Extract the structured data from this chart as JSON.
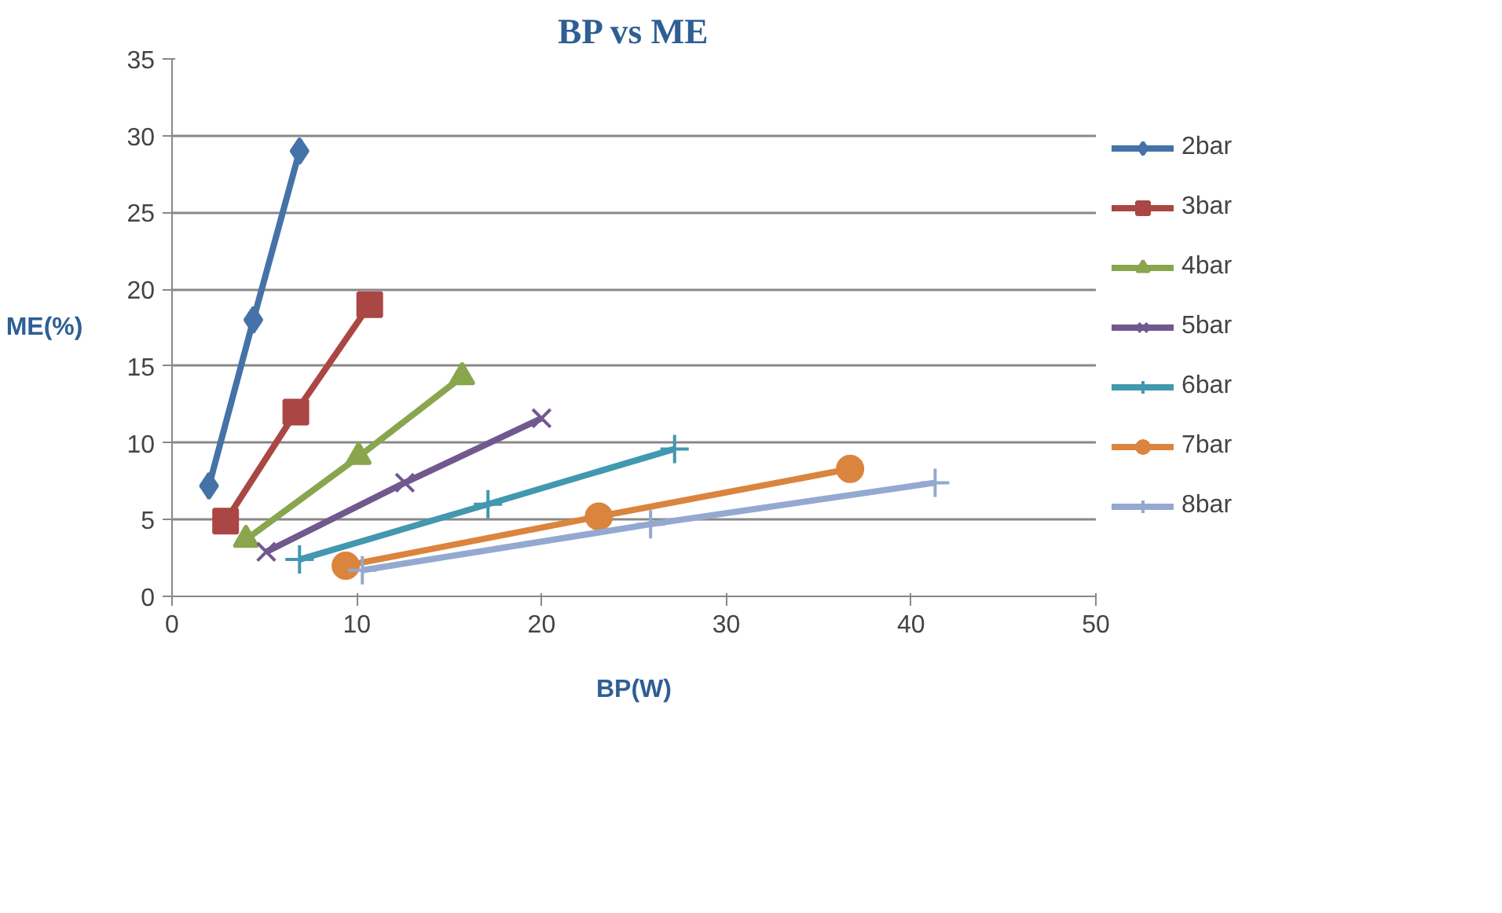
{
  "chart_data": {
    "type": "line",
    "title": "BP vs ME",
    "xlabel": "BP(W)",
    "ylabel": "ME(%)",
    "xlim": [
      0,
      50
    ],
    "xticks": [
      0,
      10,
      20,
      30,
      40,
      50
    ],
    "ylim": [
      0,
      35
    ],
    "yticks": [
      0,
      5,
      10,
      15,
      20,
      25,
      30,
      35
    ],
    "grid": "y",
    "legend": "right",
    "line_style": "solid",
    "series": [
      {
        "name": "2bar",
        "color": "#4572a7",
        "marker": "diamond",
        "x": [
          2.0,
          4.4,
          6.9
        ],
        "values": [
          7.2,
          18.0,
          29.0
        ]
      },
      {
        "name": "3bar",
        "color": "#aa4643",
        "marker": "square",
        "x": [
          2.9,
          6.7,
          10.7
        ],
        "values": [
          4.9,
          12.0,
          19.0
        ]
      },
      {
        "name": "4bar",
        "color": "#89a54e",
        "marker": "triangle",
        "x": [
          4.0,
          10.1,
          15.7
        ],
        "values": [
          3.7,
          9.1,
          14.3
        ]
      },
      {
        "name": "5bar",
        "color": "#71588f",
        "marker": "x",
        "x": [
          5.1,
          12.6,
          20.0
        ],
        "values": [
          2.9,
          7.4,
          11.6
        ]
      },
      {
        "name": "6bar",
        "color": "#4198af",
        "marker": "cross",
        "x": [
          6.9,
          17.1,
          27.2
        ],
        "values": [
          2.4,
          6.0,
          9.6
        ]
      },
      {
        "name": "7bar",
        "color": "#db843d",
        "marker": "circle",
        "x": [
          9.4,
          23.1,
          36.7
        ],
        "values": [
          2.0,
          5.2,
          8.3
        ]
      },
      {
        "name": "8bar",
        "color": "#93a9cf",
        "marker": "cross",
        "x": [
          10.3,
          25.9,
          41.3
        ],
        "values": [
          1.7,
          4.7,
          7.4
        ]
      }
    ]
  }
}
